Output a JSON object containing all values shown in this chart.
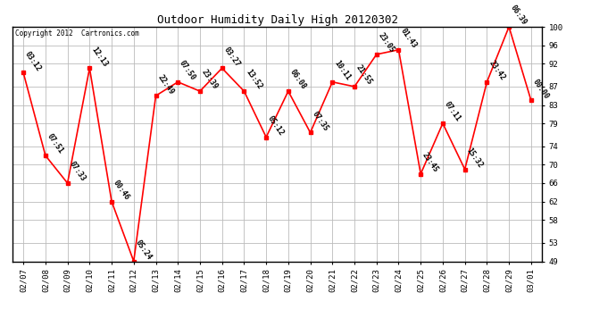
{
  "title": "Outdoor Humidity Daily High 20120302",
  "copyright": "Copyright 2012  Cartronics.com",
  "line_color": "red",
  "marker_color": "red",
  "bg_color": "#ffffff",
  "grid_color": "#bbbbbb",
  "xlabels": [
    "02/07",
    "02/08",
    "02/09",
    "02/10",
    "02/11",
    "02/12",
    "02/13",
    "02/14",
    "02/15",
    "02/16",
    "02/17",
    "02/18",
    "02/19",
    "02/20",
    "02/21",
    "02/22",
    "02/23",
    "02/24",
    "02/25",
    "02/26",
    "02/27",
    "02/28",
    "02/29",
    "03/01"
  ],
  "values": [
    90,
    72,
    66,
    91,
    62,
    49,
    85,
    88,
    86,
    91,
    86,
    76,
    86,
    77,
    88,
    87,
    94,
    95,
    68,
    79,
    69,
    88,
    100,
    84
  ],
  "annotations": [
    "03:12",
    "07:51",
    "07:33",
    "12:13",
    "00:46",
    "05:24",
    "22:49",
    "07:50",
    "23:39",
    "03:27",
    "13:52",
    "05:12",
    "06:08",
    "07:35",
    "10:11",
    "21:55",
    "23:05",
    "01:43",
    "23:45",
    "07:11",
    "15:32",
    "23:42",
    "06:39",
    "00:00"
  ],
  "ylim": [
    49,
    100
  ],
  "yticks": [
    49,
    53,
    58,
    62,
    66,
    70,
    74,
    79,
    83,
    87,
    92,
    96,
    100
  ],
  "title_fontsize": 9,
  "tick_fontsize": 6.5,
  "annot_fontsize": 6,
  "figsize": [
    6.9,
    3.75
  ],
  "dpi": 100
}
